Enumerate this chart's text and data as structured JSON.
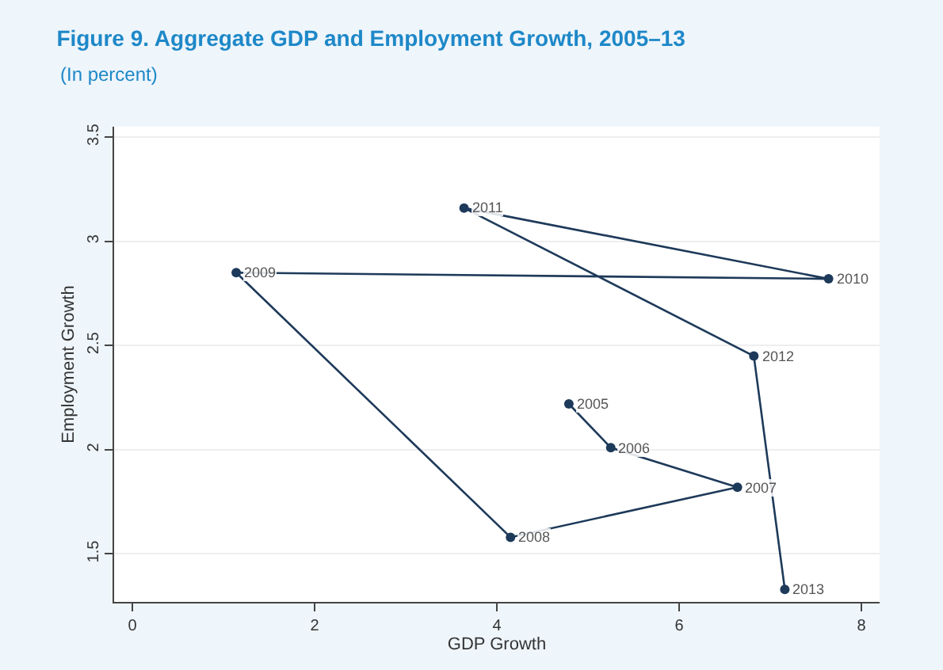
{
  "chart_data": {
    "type": "line",
    "title": "Figure 9. Aggregate GDP and Employment Growth, 2005–13",
    "subtitle": "(In percent)",
    "xlabel": "GDP Growth",
    "ylabel": "Employment Growth",
    "x": [
      4.79,
      5.25,
      6.64,
      4.15,
      1.14,
      7.64,
      3.64,
      6.82,
      7.16
    ],
    "values": [
      2.22,
      2.01,
      1.82,
      1.58,
      2.85,
      2.82,
      3.16,
      2.45,
      1.33
    ],
    "annotations": [
      {
        "text": "2005",
        "x": 4.79,
        "y": 2.22
      },
      {
        "text": "2006",
        "x": 5.25,
        "y": 2.01
      },
      {
        "text": "2007",
        "x": 6.64,
        "y": 1.82
      },
      {
        "text": "2008",
        "x": 4.15,
        "y": 1.58
      },
      {
        "text": "2009",
        "x": 1.14,
        "y": 2.85
      },
      {
        "text": "2010",
        "x": 7.64,
        "y": 2.82
      },
      {
        "text": "2011",
        "x": 3.64,
        "y": 3.16
      },
      {
        "text": "2012",
        "x": 6.82,
        "y": 2.45
      },
      {
        "text": "2013",
        "x": 7.16,
        "y": 1.33
      }
    ],
    "color": "#1e3a5a",
    "marker": "circle",
    "line_style": "solid",
    "grid": "y",
    "xlim": [
      -0.2,
      8.2
    ],
    "xticks": [
      0,
      2,
      4,
      6,
      8
    ],
    "ylim": [
      1.27,
      3.55
    ],
    "yticks": [
      1.5,
      2,
      2.5,
      3,
      3.5
    ]
  }
}
